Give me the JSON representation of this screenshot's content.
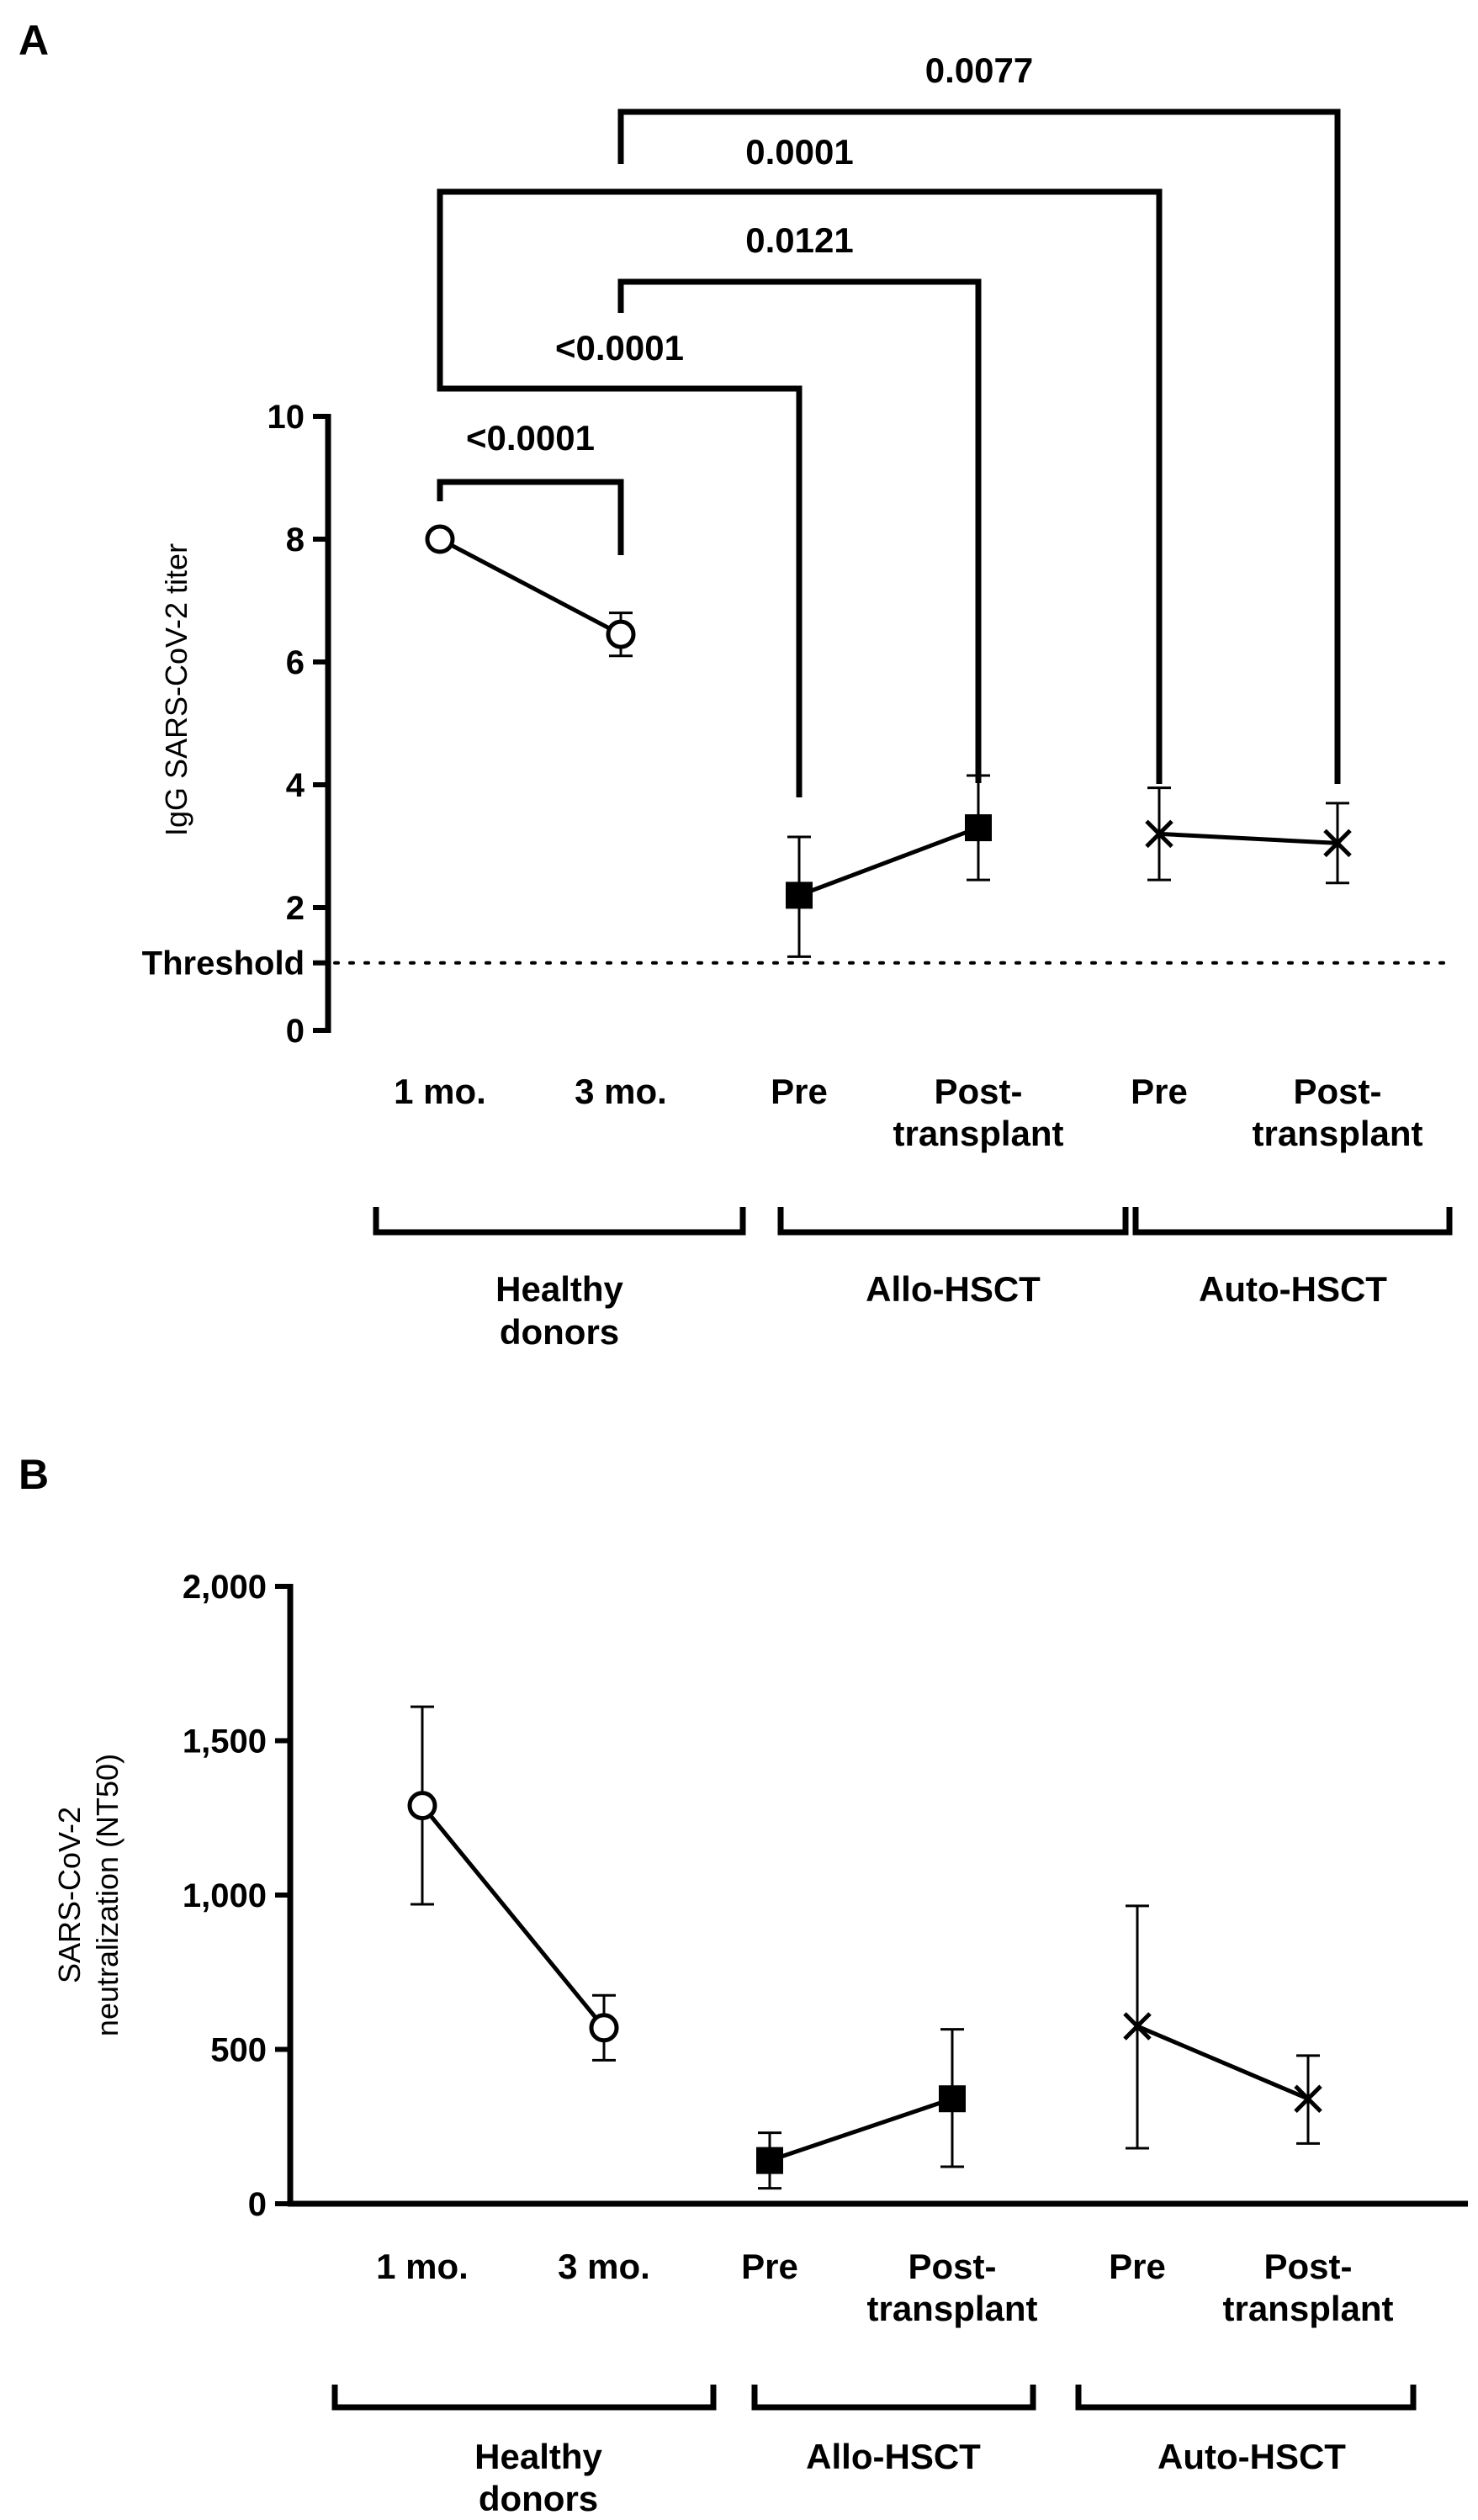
{
  "panels": {
    "a": {
      "letter": "A"
    },
    "b": {
      "letter": "B"
    }
  },
  "groups": {
    "healthy": "Healthy donors",
    "healthy_line1": "Healthy",
    "healthy_line2": "donors",
    "allo": "Allo-HSCT",
    "auto": "Auto-HSCT"
  },
  "category_labels": {
    "c1": "1 mo.",
    "c2": "3 mo.",
    "c3": "Pre",
    "c4_line1": "Post-",
    "c4_line2": "transplant",
    "c5": "Pre",
    "c6_line1": "Post-",
    "c6_line2": "transplant"
  },
  "threshold_label": "Threshold",
  "comparisons": [
    {
      "from": "1 mo.",
      "to": "3 mo.",
      "p": "<0.0001"
    },
    {
      "from": "1 mo.",
      "to": "Allo-HSCT Pre",
      "p": "<0.0001"
    },
    {
      "from": "3 mo.",
      "to": "Allo-HSCT Post-transplant",
      "p": "0.0121"
    },
    {
      "from": "1 mo.",
      "to": "Auto-HSCT Pre",
      "p": "0.0001"
    },
    {
      "from": "3 mo.",
      "to": "Auto-HSCT Post-transplant",
      "p": "0.0077"
    }
  ],
  "chart_data": [
    {
      "panel": "A",
      "type": "line",
      "ylabel": "IgG SARS-CoV-2 titer",
      "ylim": [
        0,
        10
      ],
      "yticks": [
        0,
        2,
        4,
        6,
        8,
        10
      ],
      "threshold": 1.1,
      "categories": [
        "1 mo.",
        "3 mo.",
        "Pre",
        "Post-transplant",
        "Pre",
        "Post-transplant"
      ],
      "series": [
        {
          "name": "Healthy donors",
          "marker": "open-circle",
          "x": [
            0,
            1
          ],
          "values": [
            8.0,
            6.45
          ],
          "err_low": [
            7.95,
            6.1
          ],
          "err_high": [
            8.05,
            6.8
          ]
        },
        {
          "name": "Allo-HSCT",
          "marker": "filled-square",
          "x": [
            2,
            3
          ],
          "values": [
            2.2,
            3.3
          ],
          "err_low": [
            1.2,
            2.45
          ],
          "err_high": [
            3.15,
            4.15
          ]
        },
        {
          "name": "Auto-HSCT",
          "marker": "x",
          "x": [
            4,
            5
          ],
          "values": [
            3.2,
            3.05
          ],
          "err_low": [
            2.45,
            2.4
          ],
          "err_high": [
            3.95,
            3.7
          ]
        }
      ]
    },
    {
      "panel": "B",
      "type": "line",
      "ylabel": "SARS-CoV-2 neutralization (NT50)",
      "ylabel_line1": "SARS-CoV-2",
      "ylabel_line2": "neutralization (NT50)",
      "ylim": [
        0,
        2000
      ],
      "yticks": [
        0,
        500,
        1000,
        1500,
        2000
      ],
      "ytick_labels": [
        "0",
        "500",
        "1,000",
        "1,500",
        "2,000"
      ],
      "categories": [
        "1 mo.",
        "3 mo.",
        "Pre",
        "Post-transplant",
        "Pre",
        "Post-transplant"
      ],
      "series": [
        {
          "name": "Healthy donors",
          "marker": "open-circle",
          "x": [
            0,
            1
          ],
          "values": [
            1290,
            570
          ],
          "err_low": [
            970,
            465
          ],
          "err_high": [
            1610,
            675
          ]
        },
        {
          "name": "Allo-HSCT",
          "marker": "filled-square",
          "x": [
            2,
            3
          ],
          "values": [
            140,
            340
          ],
          "err_low": [
            50,
            120
          ],
          "err_high": [
            230,
            565
          ]
        },
        {
          "name": "Auto-HSCT",
          "marker": "x",
          "x": [
            4,
            5
          ],
          "values": [
            575,
            340
          ],
          "err_low": [
            180,
            195
          ],
          "err_high": [
            965,
            480
          ]
        }
      ]
    }
  ]
}
